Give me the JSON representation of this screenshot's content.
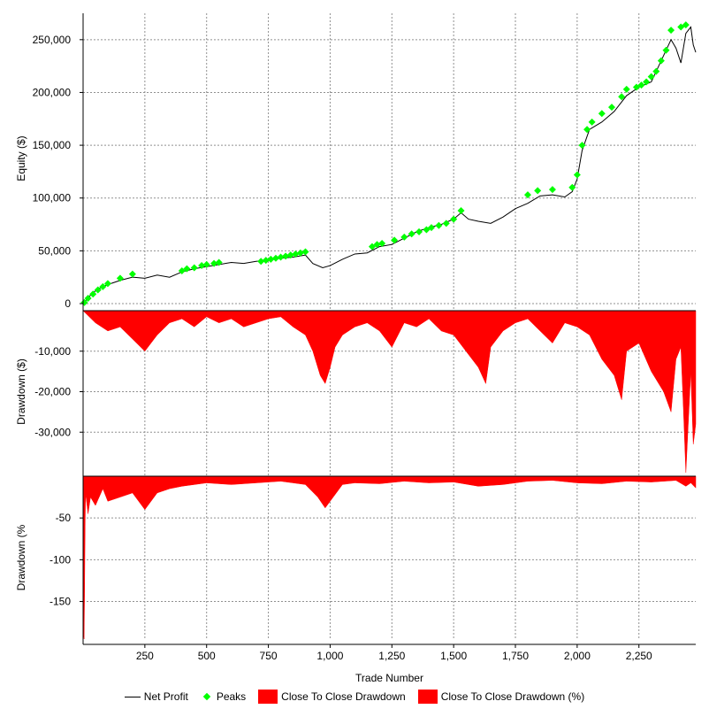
{
  "chart_data": {
    "type": "line",
    "x_label": "Trade Number",
    "x_range": [
      0,
      2480
    ],
    "x_ticks": [
      250,
      500,
      750,
      1000,
      1250,
      1500,
      1750,
      2000,
      2250
    ],
    "x_tick_labels": [
      "250",
      "500",
      "750",
      "1,000",
      "1,250",
      "1,500",
      "1,750",
      "2,000",
      "2,250"
    ],
    "panels": [
      {
        "name": "equity",
        "y_label": "Equity ($)",
        "y_range": [
          0,
          275000
        ],
        "y_ticks": [
          0,
          50000,
          100000,
          150000,
          200000,
          250000
        ],
        "y_tick_labels": [
          "0",
          "50,000",
          "100,000",
          "150,000",
          "200,000",
          "250,000"
        ],
        "series": [
          {
            "name": "Net Profit",
            "type": "line",
            "color": "#000000",
            "x": [
              0,
              30,
              60,
              100,
              150,
              200,
              250,
              300,
              350,
              400,
              450,
              500,
              550,
              600,
              650,
              700,
              750,
              800,
              850,
              900,
              930,
              970,
              1000,
              1050,
              1100,
              1150,
              1200,
              1250,
              1300,
              1350,
              1400,
              1450,
              1500,
              1530,
              1560,
              1600,
              1650,
              1700,
              1750,
              1800,
              1850,
              1900,
              1950,
              1980,
              2000,
              2020,
              2050,
              2100,
              2150,
              2200,
              2250,
              2300,
              2350,
              2380,
              2400,
              2420,
              2440,
              2460,
              2470,
              2480
            ],
            "y": [
              0,
              8000,
              14000,
              18000,
              22000,
              25000,
              24000,
              27000,
              25000,
              30000,
              33000,
              35000,
              37000,
              39000,
              38000,
              40000,
              41000,
              43000,
              44000,
              46000,
              38000,
              34000,
              36000,
              42000,
              47000,
              48000,
              54000,
              56000,
              62000,
              68000,
              72000,
              75000,
              80000,
              86000,
              80000,
              78000,
              76000,
              82000,
              90000,
              95000,
              102000,
              103000,
              101000,
              106000,
              118000,
              145000,
              165000,
              172000,
              182000,
              197000,
              205000,
              210000,
              235000,
              250000,
              242000,
              228000,
              256000,
              262000,
              245000,
              238000
            ]
          },
          {
            "name": "Peaks",
            "type": "scatter",
            "color": "#00ff00",
            "x": [
              5,
              20,
              40,
              60,
              80,
              100,
              150,
              200,
              400,
              420,
              450,
              480,
              500,
              530,
              550,
              720,
              740,
              760,
              780,
              800,
              820,
              840,
              860,
              880,
              900,
              1170,
              1190,
              1210,
              1260,
              1300,
              1330,
              1360,
              1390,
              1410,
              1440,
              1470,
              1500,
              1530,
              1800,
              1840,
              1900,
              1980,
              2000,
              2020,
              2040,
              2060,
              2100,
              2140,
              2180,
              2200,
              2240,
              2260,
              2280,
              2300,
              2320,
              2340,
              2360,
              2380,
              2420,
              2440
            ],
            "y": [
              1000,
              5000,
              9000,
              13000,
              16000,
              19000,
              24000,
              28000,
              31000,
              33000,
              34000,
              36000,
              37000,
              38000,
              39000,
              40000,
              41000,
              42000,
              43000,
              44000,
              45000,
              46000,
              47000,
              48000,
              49000,
              54000,
              56000,
              57000,
              60000,
              63000,
              66000,
              68000,
              70000,
              72000,
              74000,
              76000,
              80000,
              88000,
              103000,
              107000,
              108000,
              110000,
              122000,
              150000,
              165000,
              172000,
              180000,
              186000,
              196000,
              203000,
              205000,
              207000,
              210000,
              215000,
              220000,
              230000,
              240000,
              259000,
              262000,
              264000
            ]
          }
        ]
      },
      {
        "name": "drawdown-dollars",
        "y_label": "Drawdown ($)",
        "y_range": [
          -40000,
          0
        ],
        "y_ticks": [
          -10000,
          -20000,
          -30000
        ],
        "y_tick_labels": [
          "-10,000",
          "-20,000",
          "-30,000"
        ],
        "series": [
          {
            "name": "Close To Close Drawdown",
            "type": "area",
            "color": "#ff0000",
            "x": [
              0,
              50,
              100,
              150,
              200,
              250,
              300,
              350,
              400,
              450,
              500,
              550,
              600,
              650,
              700,
              750,
              800,
              850,
              900,
              930,
              960,
              980,
              1000,
              1020,
              1050,
              1100,
              1150,
              1200,
              1250,
              1300,
              1350,
              1400,
              1450,
              1500,
              1550,
              1600,
              1630,
              1650,
              1700,
              1750,
              1800,
              1850,
              1900,
              1950,
              2000,
              2050,
              2100,
              2150,
              2180,
              2200,
              2250,
              2300,
              2350,
              2380,
              2400,
              2420,
              2430,
              2440,
              2460,
              2470,
              2480
            ],
            "y": [
              0,
              -3000,
              -5000,
              -4000,
              -7000,
              -10000,
              -6000,
              -3000,
              -2000,
              -4000,
              -1500,
              -3000,
              -2000,
              -4000,
              -3000,
              -2000,
              -1500,
              -4000,
              -6000,
              -10000,
              -16000,
              -18000,
              -14000,
              -9000,
              -6000,
              -4000,
              -3000,
              -5000,
              -9000,
              -3000,
              -4000,
              -2000,
              -5000,
              -6000,
              -10000,
              -14000,
              -18000,
              -9000,
              -5000,
              -3000,
              -2000,
              -5000,
              -8000,
              -3000,
              -4000,
              -6000,
              -12000,
              -16000,
              -22000,
              -10000,
              -8000,
              -15000,
              -20000,
              -25000,
              -12000,
              -9000,
              -24000,
              -40000,
              -15000,
              -33000,
              -28000
            ]
          }
        ]
      },
      {
        "name": "drawdown-percent",
        "y_label": "Drawdown (%",
        "y_range": [
          -195,
          0
        ],
        "y_ticks": [
          -50,
          -100,
          -150
        ],
        "y_tick_labels": [
          "-50",
          "-100",
          "-150"
        ],
        "series": [
          {
            "name": "Close To Close Drawdown (%)",
            "type": "area",
            "color": "#ff0000",
            "x": [
              0,
              2,
              4,
              6,
              8,
              10,
              20,
              30,
              50,
              80,
              100,
              150,
              200,
              250,
              300,
              350,
              400,
              500,
              600,
              700,
              800,
              900,
              950,
              980,
              1000,
              1050,
              1100,
              1200,
              1300,
              1400,
              1500,
              1600,
              1700,
              1800,
              1900,
              2000,
              2100,
              2200,
              2300,
              2400,
              2440,
              2460,
              2480
            ],
            "y": [
              0,
              -190,
              -195,
              -140,
              -60,
              -20,
              -45,
              -25,
              -35,
              -15,
              -30,
              -25,
              -20,
              -40,
              -20,
              -15,
              -12,
              -8,
              -10,
              -8,
              -6,
              -10,
              -25,
              -38,
              -30,
              -10,
              -8,
              -9,
              -6,
              -8,
              -7,
              -12,
              -10,
              -6,
              -5,
              -8,
              -9,
              -6,
              -7,
              -5,
              -12,
              -8,
              -14
            ]
          }
        ]
      }
    ],
    "legend": [
      "Net Profit",
      "Peaks",
      "Close To Close Drawdown",
      "Close To Close Drawdown (%)"
    ]
  }
}
